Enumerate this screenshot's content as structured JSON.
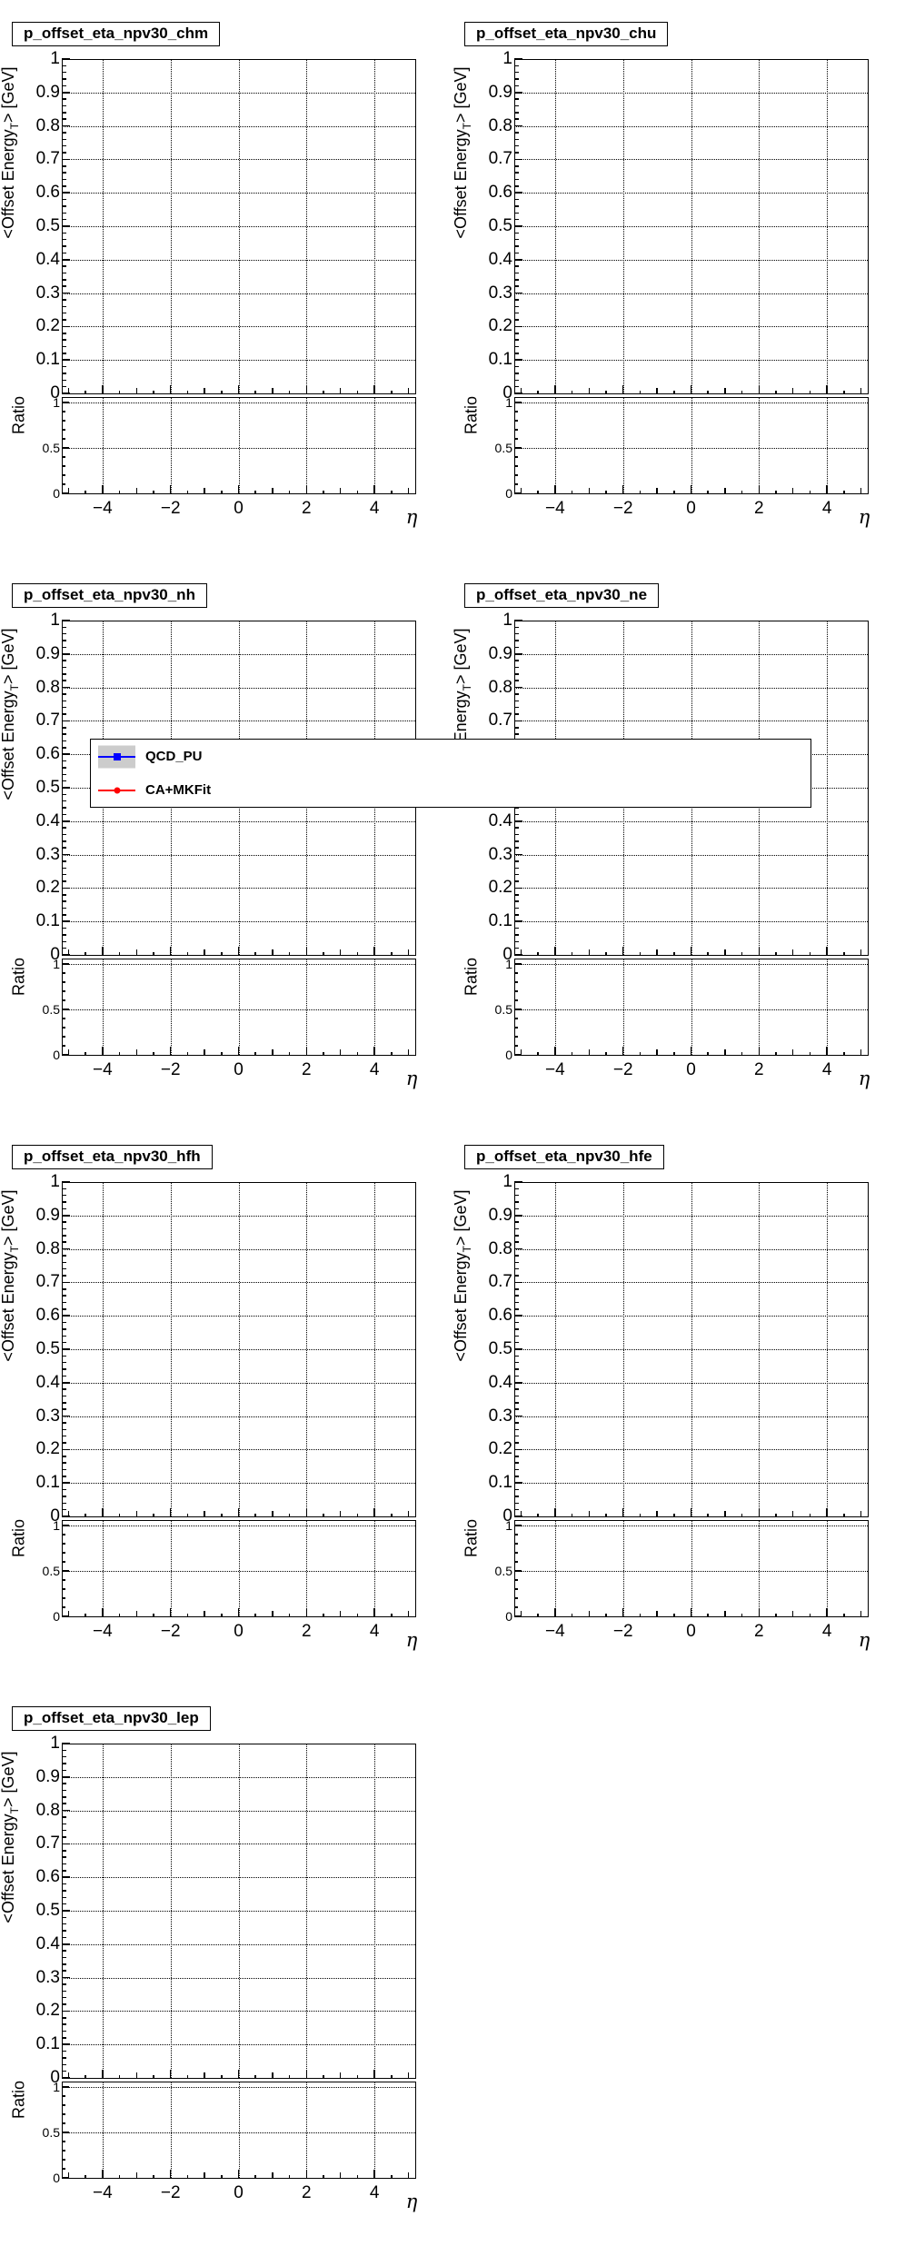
{
  "page": {
    "background": "#ffffff"
  },
  "panels": [
    {
      "title": "p_offset_eta_npv30_chm"
    },
    {
      "title": "p_offset_eta_npv30_chu"
    },
    {
      "title": "p_offset_eta_npv30_nh"
    },
    {
      "title": "p_offset_eta_npv30_ne"
    },
    {
      "title": "p_offset_eta_npv30_hfh"
    },
    {
      "title": "p_offset_eta_npv30_hfe"
    },
    {
      "title": "p_offset_eta_npv30_lep"
    }
  ],
  "axes": {
    "x_title": "η",
    "y_title_main_pre": "<Offset Energy",
    "y_title_main_sub": "T",
    "y_title_main_post": "> [GeV]",
    "y_title_ratio": "Ratio",
    "x_range": [
      -5.2,
      5.2
    ],
    "x_ticks": {
      "values": [
        -4,
        -2,
        0,
        2,
        4
      ],
      "labels": [
        "−4",
        "−2",
        "0",
        "2",
        "4"
      ]
    },
    "main_y_ticks": {
      "values": [
        1,
        0.9,
        0.8,
        0.7,
        0.6,
        0.5,
        0.4,
        0.3,
        0.2,
        0.1,
        0
      ],
      "labels": [
        "1",
        "0.9",
        "0.8",
        "0.7",
        "0.6",
        "0.5",
        "0.4",
        "0.3",
        "0.2",
        "0.1",
        "0"
      ]
    },
    "ratio_y_ticks": {
      "values": [
        1,
        0.5,
        0
      ],
      "labels": [
        "1",
        "0.5",
        "0"
      ]
    }
  },
  "legend": {
    "entries": [
      {
        "label": "QCD_PU",
        "line_color": "#0000ff",
        "marker": "square",
        "marker_color": "#0000ff",
        "band_color": "#cccccc"
      },
      {
        "label": "CA+MKFit",
        "line_color": "#ff0000",
        "marker": "circle",
        "marker_color": "#ff0000"
      }
    ]
  },
  "chart_data": [
    {
      "type": "scatter",
      "title": "p_offset_eta_npv30_chm",
      "xlabel": "η",
      "ylabel": "<Offset Energy_T> [GeV]",
      "xlim": [
        -5.2,
        5.2
      ],
      "ylim": [
        0,
        1
      ],
      "grid": true,
      "ratio_panel": {
        "ylabel": "Ratio",
        "ylim": [
          0,
          1.06
        ],
        "yticks": [
          0,
          0.5,
          1
        ]
      },
      "series": [
        {
          "name": "QCD_PU",
          "x": [],
          "y": []
        },
        {
          "name": "CA+MKFit",
          "x": [],
          "y": []
        }
      ],
      "note": "plot area empty - no visible data points"
    },
    {
      "type": "scatter",
      "title": "p_offset_eta_npv30_chu",
      "xlabel": "η",
      "ylabel": "<Offset Energy_T> [GeV]",
      "xlim": [
        -5.2,
        5.2
      ],
      "ylim": [
        0,
        1
      ],
      "grid": true,
      "ratio_panel": {
        "ylabel": "Ratio",
        "ylim": [
          0,
          1.06
        ],
        "yticks": [
          0,
          0.5,
          1
        ]
      },
      "series": [
        {
          "name": "QCD_PU",
          "x": [],
          "y": []
        },
        {
          "name": "CA+MKFit",
          "x": [],
          "y": []
        }
      ],
      "note": "plot area empty - no visible data points"
    },
    {
      "type": "scatter",
      "title": "p_offset_eta_npv30_nh",
      "xlabel": "η",
      "ylabel": "<Offset Energy_T> [GeV]",
      "xlim": [
        -5.2,
        5.2
      ],
      "ylim": [
        0,
        1
      ],
      "grid": true,
      "ratio_panel": {
        "ylabel": "Ratio",
        "ylim": [
          0,
          1.06
        ],
        "yticks": [
          0,
          0.5,
          1
        ]
      },
      "series": [
        {
          "name": "QCD_PU",
          "x": [],
          "y": []
        },
        {
          "name": "CA+MKFit",
          "x": [],
          "y": []
        }
      ],
      "note": "legend box overlaps this panel"
    },
    {
      "type": "scatter",
      "title": "p_offset_eta_npv30_ne",
      "xlabel": "η",
      "ylabel": "<Offset Energy_T> [GeV]",
      "xlim": [
        -5.2,
        5.2
      ],
      "ylim": [
        0,
        1
      ],
      "grid": true,
      "ratio_panel": {
        "ylabel": "Ratio",
        "ylim": [
          0,
          1.06
        ],
        "yticks": [
          0,
          0.5,
          1
        ]
      },
      "series": [
        {
          "name": "QCD_PU",
          "x": [],
          "y": []
        },
        {
          "name": "CA+MKFit",
          "x": [],
          "y": []
        }
      ],
      "note": "legend box overlaps this panel"
    },
    {
      "type": "scatter",
      "title": "p_offset_eta_npv30_hfh",
      "xlabel": "η",
      "ylabel": "<Offset Energy_T> [GeV]",
      "xlim": [
        -5.2,
        5.2
      ],
      "ylim": [
        0,
        1
      ],
      "grid": true,
      "ratio_panel": {
        "ylabel": "Ratio",
        "ylim": [
          0,
          1.06
        ],
        "yticks": [
          0,
          0.5,
          1
        ]
      },
      "series": [
        {
          "name": "QCD_PU",
          "x": [],
          "y": []
        },
        {
          "name": "CA+MKFit",
          "x": [],
          "y": []
        }
      ],
      "note": "plot area empty - no visible data points"
    },
    {
      "type": "scatter",
      "title": "p_offset_eta_npv30_hfe",
      "xlabel": "η",
      "ylabel": "<Offset Energy_T> [GeV]",
      "xlim": [
        -5.2,
        5.2
      ],
      "ylim": [
        0,
        1
      ],
      "grid": true,
      "ratio_panel": {
        "ylabel": "Ratio",
        "ylim": [
          0,
          1.06
        ],
        "yticks": [
          0,
          0.5,
          1
        ]
      },
      "series": [
        {
          "name": "QCD_PU",
          "x": [],
          "y": []
        },
        {
          "name": "CA+MKFit",
          "x": [],
          "y": []
        }
      ],
      "note": "plot area empty - no visible data points"
    },
    {
      "type": "scatter",
      "title": "p_offset_eta_npv30_lep",
      "xlabel": "η",
      "ylabel": "<Offset Energy_T> [GeV]",
      "xlim": [
        -5.2,
        5.2
      ],
      "ylim": [
        0,
        1
      ],
      "grid": true,
      "ratio_panel": {
        "ylabel": "Ratio",
        "ylim": [
          0,
          1.06
        ],
        "yticks": [
          0,
          0.5,
          1
        ]
      },
      "series": [
        {
          "name": "QCD_PU",
          "x": [],
          "y": []
        },
        {
          "name": "CA+MKFit",
          "x": [],
          "y": []
        }
      ],
      "note": "plot area empty - no visible data points"
    }
  ]
}
